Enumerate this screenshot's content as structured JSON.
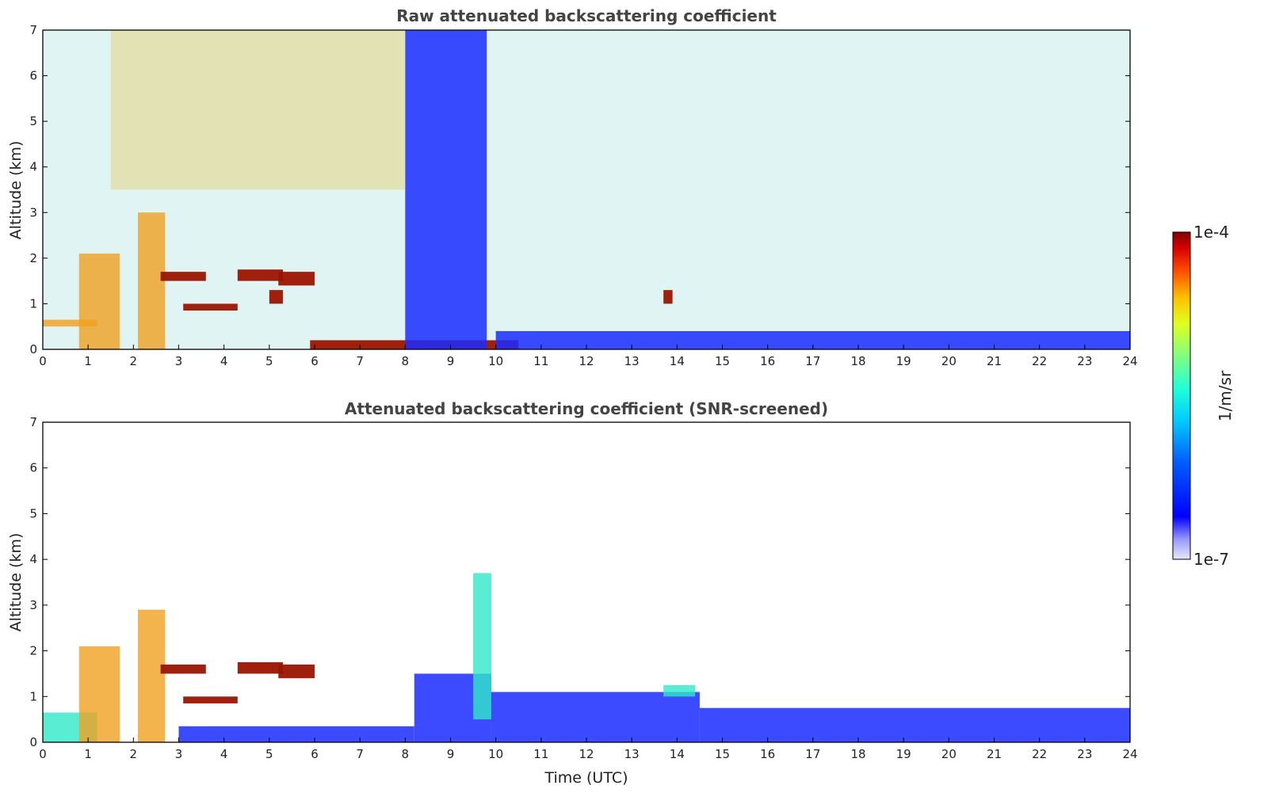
{
  "chart_data": [
    {
      "type": "heatmap",
      "title": "Raw attenuated backscattering coefficient",
      "xlabel": "",
      "ylabel": "Altitude (km)",
      "xlim": [
        0,
        24
      ],
      "ylim": [
        0,
        7
      ],
      "x_ticks": [
        "0",
        "1",
        "2",
        "3",
        "4",
        "5",
        "6",
        "7",
        "8",
        "9",
        "10",
        "11",
        "12",
        "13",
        "14",
        "15",
        "16",
        "17",
        "18",
        "19",
        "20",
        "21",
        "22",
        "23",
        "24"
      ],
      "y_ticks": [
        "0",
        "1",
        "2",
        "3",
        "4",
        "5",
        "6",
        "7"
      ],
      "colorscale": "jet",
      "features": [
        {
          "t": [
            0.0,
            1.2
          ],
          "alt": [
            0.5,
            0.65
          ],
          "level": "high"
        },
        {
          "t": [
            0.8,
            1.7
          ],
          "alt": [
            0.0,
            2.1
          ],
          "level": "high"
        },
        {
          "t": [
            2.1,
            2.7
          ],
          "alt": [
            0.0,
            3.0
          ],
          "level": "high"
        },
        {
          "t": [
            2.6,
            3.6
          ],
          "alt": [
            1.5,
            1.7
          ],
          "level": "max"
        },
        {
          "t": [
            3.1,
            4.3
          ],
          "alt": [
            0.85,
            1.0
          ],
          "level": "max"
        },
        {
          "t": [
            4.3,
            5.3
          ],
          "alt": [
            1.5,
            1.75
          ],
          "level": "max"
        },
        {
          "t": [
            5.0,
            5.3
          ],
          "alt": [
            1.0,
            1.3
          ],
          "level": "max"
        },
        {
          "t": [
            5.2,
            6.0
          ],
          "alt": [
            1.4,
            1.7
          ],
          "level": "max"
        },
        {
          "t": [
            5.9,
            10.5
          ],
          "alt": [
            0.0,
            0.2
          ],
          "level": "max"
        },
        {
          "t": [
            8.0,
            9.8
          ],
          "alt": [
            0.0,
            7.0
          ],
          "level": "low"
        },
        {
          "t": [
            10.0,
            24.0
          ],
          "alt": [
            0.0,
            0.4
          ],
          "level": "low"
        },
        {
          "t": [
            13.7,
            13.9
          ],
          "alt": [
            1.0,
            1.3
          ],
          "level": "max"
        },
        {
          "t": [
            1.5,
            8.0
          ],
          "alt": [
            3.5,
            7.0
          ],
          "level": "high-noise"
        }
      ]
    },
    {
      "type": "heatmap",
      "title": "Attenuated backscattering coefficient (SNR-screened)",
      "xlabel": "Time (UTC)",
      "ylabel": "Altitude (km)",
      "xlim": [
        0,
        24
      ],
      "ylim": [
        0,
        7
      ],
      "x_ticks": [
        "0",
        "1",
        "2",
        "3",
        "4",
        "5",
        "6",
        "7",
        "8",
        "9",
        "10",
        "11",
        "12",
        "13",
        "14",
        "15",
        "16",
        "17",
        "18",
        "19",
        "20",
        "21",
        "22",
        "23",
        "24"
      ],
      "y_ticks": [
        "0",
        "1",
        "2",
        "3",
        "4",
        "5",
        "6",
        "7"
      ],
      "colorscale": "jet",
      "features": [
        {
          "t": [
            0.0,
            1.2
          ],
          "alt": [
            0.0,
            0.65
          ],
          "level": "mid"
        },
        {
          "t": [
            0.8,
            1.7
          ],
          "alt": [
            0.0,
            2.1
          ],
          "level": "high"
        },
        {
          "t": [
            2.1,
            2.7
          ],
          "alt": [
            0.0,
            2.9
          ],
          "level": "high"
        },
        {
          "t": [
            2.6,
            3.6
          ],
          "alt": [
            1.5,
            1.7
          ],
          "level": "max"
        },
        {
          "t": [
            3.1,
            4.3
          ],
          "alt": [
            0.85,
            1.0
          ],
          "level": "max"
        },
        {
          "t": [
            4.3,
            5.3
          ],
          "alt": [
            1.5,
            1.75
          ],
          "level": "max"
        },
        {
          "t": [
            5.2,
            6.0
          ],
          "alt": [
            1.4,
            1.7
          ],
          "level": "max"
        },
        {
          "t": [
            3.0,
            8.2
          ],
          "alt": [
            0.0,
            0.35
          ],
          "level": "low"
        },
        {
          "t": [
            8.2,
            9.9
          ],
          "alt": [
            0.0,
            1.5
          ],
          "level": "low"
        },
        {
          "t": [
            9.5,
            9.9
          ],
          "alt": [
            0.5,
            3.7
          ],
          "level": "mid"
        },
        {
          "t": [
            9.9,
            14.5
          ],
          "alt": [
            0.0,
            1.1
          ],
          "level": "low"
        },
        {
          "t": [
            13.7,
            14.4
          ],
          "alt": [
            1.0,
            1.25
          ],
          "level": "mid"
        },
        {
          "t": [
            14.5,
            24.0
          ],
          "alt": [
            0.0,
            0.75
          ],
          "level": "low"
        }
      ]
    }
  ],
  "colorbar": {
    "label": "1/m/sr",
    "max_label": "1e-4",
    "min_label": "1e-7",
    "scale": "log",
    "range": [
      1e-07,
      0.0001
    ]
  }
}
